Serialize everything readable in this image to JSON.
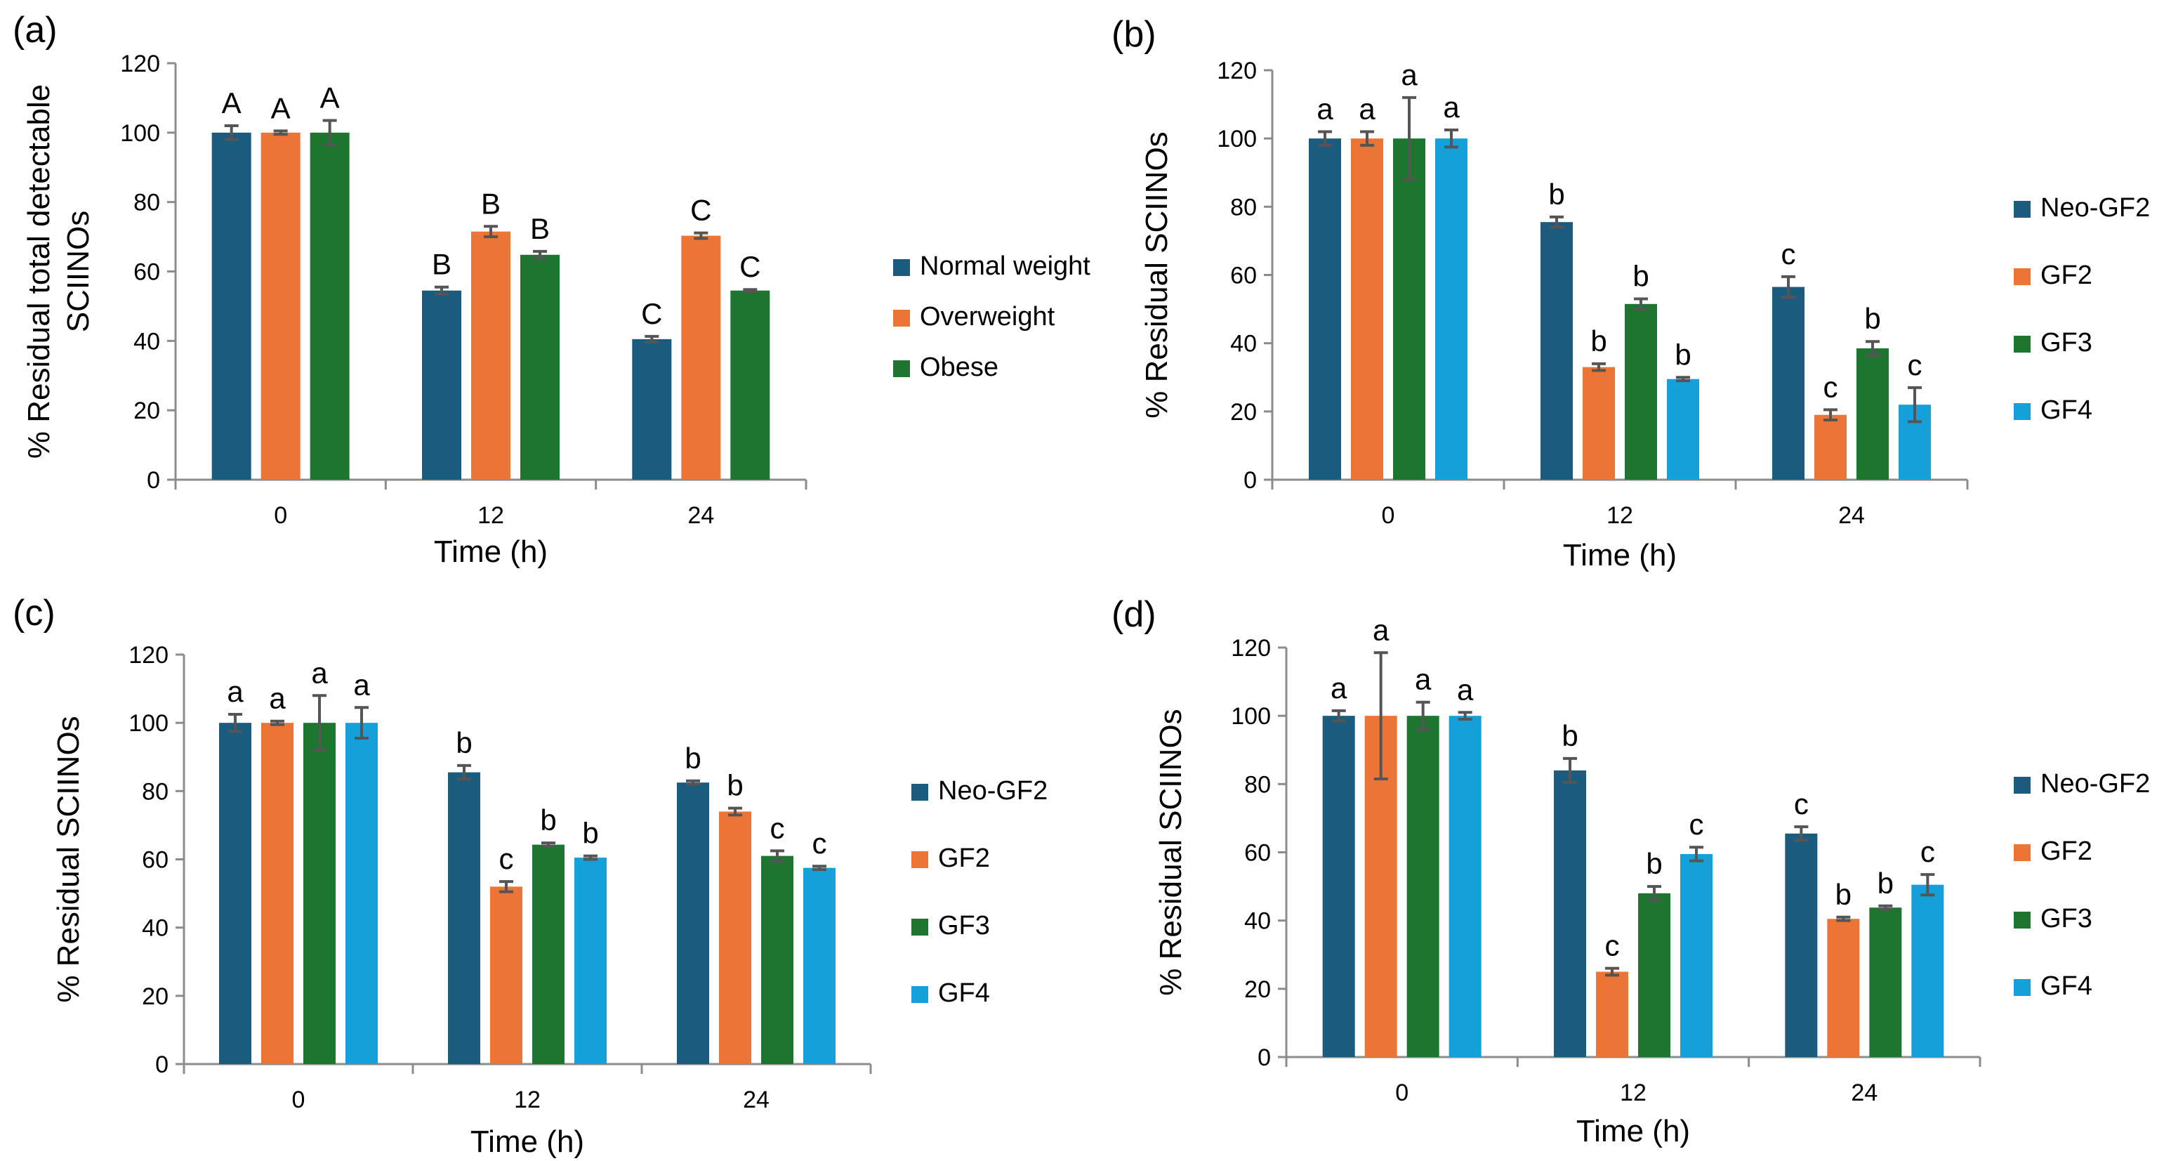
{
  "colors": {
    "normal_weight": "#1B5C7E",
    "overweight": "#ED7437",
    "obese": "#1E7530",
    "neo_gf2": "#1B5C7E",
    "gf2": "#ED7437",
    "gf3": "#1E7530",
    "gf4": "#15A0D9",
    "axis": "#8C8C8C",
    "error_bar": "#555555"
  },
  "chart_data": [
    {
      "panel_label": "(a)",
      "type": "bar",
      "categories": [
        "0",
        "12",
        "24"
      ],
      "xlabel": "Time (h)",
      "ylabel_lines": [
        "% Residual total detectable",
        "SCIINOs"
      ],
      "ylim": [
        0,
        120
      ],
      "yticks": [
        "0",
        "20",
        "40",
        "60",
        "80",
        "100",
        "120"
      ],
      "legend": "right",
      "series": [
        {
          "name": "Normal weight",
          "color_key": "normal_weight",
          "values": [
            100,
            54.5,
            40.5
          ],
          "errors": [
            2,
            1,
            0.8
          ],
          "letters": [
            "A",
            "B",
            "C"
          ]
        },
        {
          "name": "Overweight",
          "color_key": "overweight",
          "values": [
            100,
            71.5,
            70.3
          ],
          "errors": [
            0.5,
            1.5,
            0.8
          ],
          "letters": [
            "A",
            "B",
            "C"
          ]
        },
        {
          "name": "Obese",
          "color_key": "obese",
          "values": [
            100,
            64.8,
            54.5
          ],
          "errors": [
            3.5,
            1,
            0.3
          ],
          "letters": [
            "A",
            "B",
            "C"
          ]
        }
      ]
    },
    {
      "panel_label": "(b)",
      "type": "bar",
      "categories": [
        "0",
        "12",
        "24"
      ],
      "xlabel": "Time (h)",
      "ylabel_lines": [
        "% Residual SCIINOs"
      ],
      "ylim": [
        0,
        120
      ],
      "yticks": [
        "0",
        "20",
        "40",
        "60",
        "80",
        "100",
        "120"
      ],
      "legend": "right",
      "series": [
        {
          "name": "Neo-GF2",
          "color_key": "neo_gf2",
          "values": [
            100,
            75.5,
            56.5
          ],
          "errors": [
            2,
            1.5,
            3
          ],
          "letters": [
            "a",
            "b",
            "c"
          ]
        },
        {
          "name": "GF2",
          "color_key": "gf2",
          "values": [
            100,
            33,
            19
          ],
          "errors": [
            2,
            1,
            1.5
          ],
          "letters": [
            "a",
            "b",
            "c"
          ]
        },
        {
          "name": "GF3",
          "color_key": "gf3",
          "values": [
            100,
            51.5,
            38.5
          ],
          "errors": [
            12,
            1.5,
            2
          ],
          "letters": [
            "a",
            "b",
            "b"
          ]
        },
        {
          "name": "GF4",
          "color_key": "gf4",
          "values": [
            100,
            29.5,
            22
          ],
          "errors": [
            2.5,
            0.5,
            5
          ],
          "letters": [
            "a",
            "b",
            "c"
          ]
        }
      ]
    },
    {
      "panel_label": "(c)",
      "type": "bar",
      "categories": [
        "0",
        "12",
        "24"
      ],
      "xlabel": "Time (h)",
      "ylabel_lines": [
        "% Residual SCIINOs"
      ],
      "ylim": [
        0,
        120
      ],
      "yticks": [
        "0",
        "20",
        "40",
        "60",
        "80",
        "100",
        "120"
      ],
      "legend": "right",
      "series": [
        {
          "name": "Neo-GF2",
          "color_key": "neo_gf2",
          "values": [
            100,
            85.5,
            82.5
          ],
          "errors": [
            2.5,
            2,
            0.5
          ],
          "letters": [
            "a",
            "b",
            "b"
          ]
        },
        {
          "name": "GF2",
          "color_key": "gf2",
          "values": [
            100,
            52,
            74
          ],
          "errors": [
            0.5,
            1.5,
            1
          ],
          "letters": [
            "a",
            "c",
            "b"
          ]
        },
        {
          "name": "GF3",
          "color_key": "gf3",
          "values": [
            100,
            64.3,
            61
          ],
          "errors": [
            8,
            0.5,
            1.5
          ],
          "letters": [
            "a",
            "b",
            "c"
          ]
        },
        {
          "name": "GF4",
          "color_key": "gf4",
          "values": [
            100,
            60.5,
            57.5
          ],
          "errors": [
            4.5,
            0.5,
            0.5
          ],
          "letters": [
            "a",
            "b",
            "c"
          ]
        }
      ]
    },
    {
      "panel_label": "(d)",
      "type": "bar",
      "categories": [
        "0",
        "12",
        "24"
      ],
      "xlabel": "Time (h)",
      "ylabel_lines": [
        "% Residual SCIINOs"
      ],
      "ylim": [
        0,
        120
      ],
      "yticks": [
        "0",
        "20",
        "40",
        "60",
        "80",
        "100",
        "120"
      ],
      "legend": "right",
      "series": [
        {
          "name": "Neo-GF2",
          "color_key": "neo_gf2",
          "values": [
            100,
            84,
            65.5
          ],
          "errors": [
            1.5,
            3.5,
            2
          ],
          "letters": [
            "a",
            "b",
            "c"
          ]
        },
        {
          "name": "GF2",
          "color_key": "gf2",
          "values": [
            100,
            25,
            40.5
          ],
          "errors": [
            18.5,
            1,
            0.5
          ],
          "letters": [
            "a",
            "c",
            "b"
          ]
        },
        {
          "name": "GF3",
          "color_key": "gf3",
          "values": [
            100,
            48,
            43.8
          ],
          "errors": [
            4,
            2,
            0.5
          ],
          "letters": [
            "a",
            "b",
            "b"
          ]
        },
        {
          "name": "GF4",
          "color_key": "gf4",
          "values": [
            100,
            59.5,
            50.5
          ],
          "errors": [
            1,
            2,
            3
          ],
          "letters": [
            "a",
            "c",
            "c"
          ]
        }
      ]
    }
  ]
}
